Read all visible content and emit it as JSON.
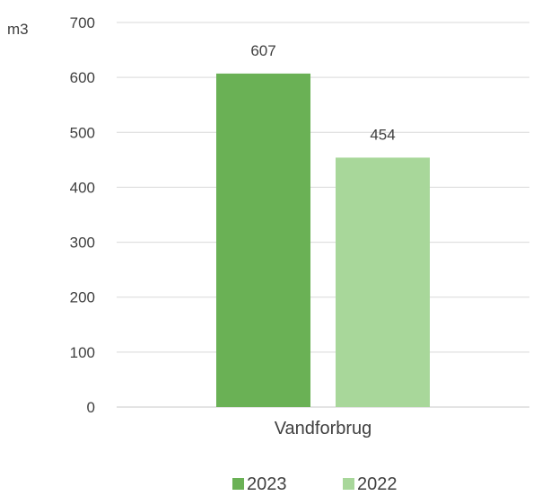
{
  "chart_data": {
    "type": "bar",
    "categories": [
      "Vandforbrug"
    ],
    "series": [
      {
        "name": "2023",
        "values": [
          607
        ],
        "color": "#6ab155"
      },
      {
        "name": "2022",
        "values": [
          454
        ],
        "color": "#a8d79a"
      }
    ],
    "ylabel": "m3",
    "ylim": [
      0,
      700
    ],
    "yticks": [
      0,
      100,
      200,
      300,
      400,
      500,
      600,
      700
    ],
    "grid": true,
    "legend": "bottom",
    "data_labels": true
  }
}
